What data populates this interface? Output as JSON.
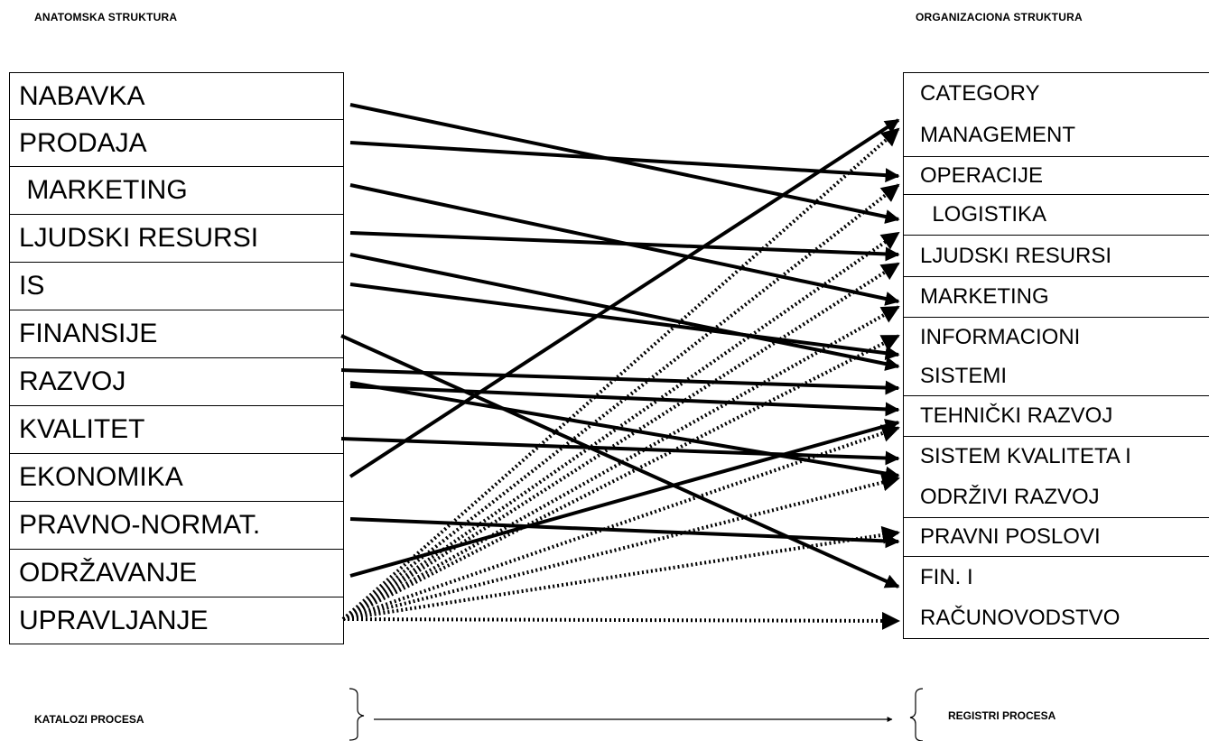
{
  "headings": {
    "left": "ANATOMSKA STRUKTURA",
    "right": "ORGANIZACIONA STRUKTURA"
  },
  "left_items": [
    "NABAVKA",
    "PRODAJA",
    " MARKETING",
    "LJUDSKI RESURSI",
    "IS",
    "FINANSIJE",
    "RAZVOJ",
    "KVALITET",
    "EKONOMIKA",
    "PRAVNO-NORMAT.",
    "ODRŽAVANJE",
    "UPRAVLJANJE"
  ],
  "right_items": [
    [
      "CATEGORY",
      "MANAGEMENT"
    ],
    [
      "OPERACIJE"
    ],
    [
      "  LOGISTIKA"
    ],
    [
      "LJUDSKI RESURSI"
    ],
    [
      "MARKETING"
    ],
    [
      "INFORMACIONI",
      "SISTEMI"
    ],
    [
      "TEHNIČKI RAZVOJ"
    ],
    [
      "SISTEM KVALITETA I",
      "ODRŽIVI RAZVOJ"
    ],
    [
      "PRAVNI POSLOVI"
    ],
    [
      "FIN. I",
      "RAČUNOVODSTVO"
    ]
  ],
  "footer": {
    "left": "KATALOZI PROCESA",
    "right": "REGISTRI PROCESA"
  }
}
